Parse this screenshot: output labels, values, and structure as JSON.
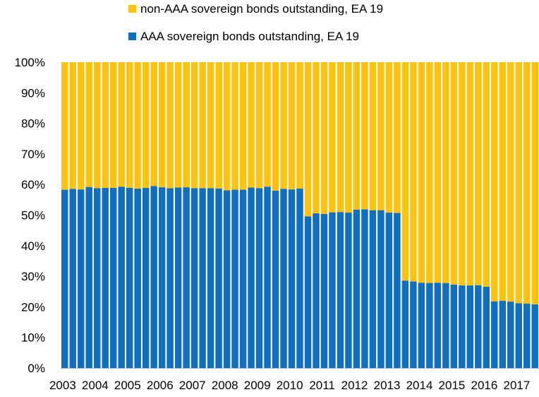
{
  "colors": {
    "aaa": "#0f6ebe",
    "non_aaa": "#ffc20e"
  },
  "chart_data": {
    "type": "bar",
    "stacked": true,
    "percent_stacked": true,
    "legend": [
      {
        "key": "non_aaa",
        "label": "non-AAA sovereign bonds outstanding, EA 19"
      },
      {
        "key": "aaa",
        "label": "AAA sovereign bonds outstanding, EA 19"
      }
    ],
    "legend_placement": "top",
    "ylim": [
      0,
      100
    ],
    "yticks": [
      "0%",
      "10%",
      "20%",
      "30%",
      "40%",
      "50%",
      "60%",
      "70%",
      "80%",
      "90%",
      "100%"
    ],
    "x_labels": [
      "2003",
      "2004",
      "2005",
      "2006",
      "2007",
      "2008",
      "2009",
      "2010",
      "2011",
      "2012",
      "2013",
      "2014",
      "2015",
      "2016",
      "2017"
    ],
    "periods_per_label": 4,
    "series": [
      {
        "name": "AAA sovereign bonds outstanding, EA 19",
        "color_key": "aaa",
        "values": [
          58.3,
          58.6,
          58.4,
          59.2,
          58.8,
          58.9,
          58.9,
          59.3,
          58.9,
          58.7,
          58.9,
          59.5,
          59.1,
          58.8,
          59.0,
          59.1,
          58.8,
          58.8,
          58.8,
          58.7,
          58.1,
          58.3,
          58.3,
          59.0,
          58.8,
          59.3,
          58.0,
          58.6,
          58.4,
          58.7,
          49.6,
          50.6,
          50.4,
          50.9,
          51.0,
          50.8,
          51.8,
          51.9,
          51.6,
          51.6,
          50.8,
          50.7,
          28.6,
          28.3,
          27.9,
          27.8,
          27.9,
          27.8,
          27.3,
          27.0,
          27.0,
          27.1,
          26.6,
          21.8,
          22.0,
          21.7,
          21.2,
          21.1,
          20.8
        ]
      },
      {
        "name": "non-AAA sovereign bonds outstanding, EA 19",
        "color_key": "non_aaa",
        "values": [
          41.7,
          41.4,
          41.6,
          40.8,
          41.2,
          41.1,
          41.1,
          40.7,
          41.1,
          41.3,
          41.1,
          40.5,
          40.9,
          41.2,
          41.0,
          40.9,
          41.2,
          41.2,
          41.2,
          41.3,
          41.9,
          41.7,
          41.7,
          41.0,
          41.2,
          40.7,
          42.0,
          41.4,
          41.6,
          41.3,
          50.4,
          49.4,
          49.6,
          49.1,
          49.0,
          49.2,
          48.2,
          48.1,
          48.4,
          48.4,
          49.2,
          49.3,
          71.4,
          71.7,
          72.1,
          72.2,
          72.1,
          72.2,
          72.7,
          73.0,
          73.0,
          72.9,
          73.4,
          78.2,
          78.0,
          78.3,
          78.8,
          78.9,
          79.2
        ]
      }
    ],
    "grid": false
  }
}
